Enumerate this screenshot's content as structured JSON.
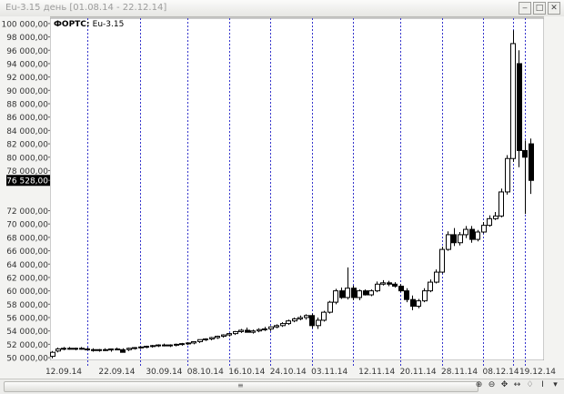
{
  "window": {
    "title": "Eu-3.15  день [01.08.14 - 22.12.14]",
    "buttons": [
      "‒",
      "□",
      "✕"
    ]
  },
  "chart_data": {
    "type": "candlestick",
    "legend_label": "ФОРТС: Eu-3.15",
    "y_ticks": [
      "100 000,00",
      "98 000,00",
      "96 000,00",
      "94 000,00",
      "92 000,00",
      "90 000,00",
      "88 000,00",
      "86 000,00",
      "84 000,00",
      "82 000,00",
      "80 000,00",
      "78 000,00",
      "76 528,00",
      "72 000,00",
      "70 000,00",
      "68 000,00",
      "66 000,00",
      "64 000,00",
      "62 000,00",
      "60 000,00",
      "58 000,00",
      "56 000,00",
      "54 000,00",
      "52 000,00",
      "50 000,00"
    ],
    "y_tick_values": [
      100000,
      98000,
      96000,
      94000,
      92000,
      90000,
      88000,
      86000,
      84000,
      82000,
      80000,
      78000,
      76528,
      72000,
      70000,
      68000,
      66000,
      64000,
      62000,
      60000,
      58000,
      56000,
      54000,
      52000,
      50000
    ],
    "current_price": "76 528,00",
    "ylim": [
      49600,
      100800
    ],
    "x_labels": [
      "12.09.14",
      "22.09.14",
      "30.09.14",
      "08.10.14",
      "16.10.14",
      "24.10.14",
      "03.11.14",
      "12.11.14",
      "20.11.14",
      "28.11.14",
      "08.12.14",
      "19.12.14"
    ],
    "candles": [
      {
        "o": 50200,
        "h": 51000,
        "l": 49900,
        "c": 50800
      },
      {
        "o": 51000,
        "h": 51500,
        "l": 50800,
        "c": 51300
      },
      {
        "o": 51300,
        "h": 51600,
        "l": 51100,
        "c": 51400
      },
      {
        "o": 51400,
        "h": 51600,
        "l": 51200,
        "c": 51300
      },
      {
        "o": 51300,
        "h": 51500,
        "l": 51100,
        "c": 51400
      },
      {
        "o": 51400,
        "h": 51600,
        "l": 51200,
        "c": 51300
      },
      {
        "o": 51300,
        "h": 51500,
        "l": 51100,
        "c": 51200
      },
      {
        "o": 51200,
        "h": 51400,
        "l": 50900,
        "c": 51100
      },
      {
        "o": 51100,
        "h": 51300,
        "l": 50900,
        "c": 51200
      },
      {
        "o": 51200,
        "h": 51400,
        "l": 51000,
        "c": 51150
      },
      {
        "o": 51150,
        "h": 51350,
        "l": 50900,
        "c": 51300
      },
      {
        "o": 51300,
        "h": 51500,
        "l": 51100,
        "c": 51200
      },
      {
        "o": 51200,
        "h": 51400,
        "l": 50900,
        "c": 50800
      },
      {
        "o": 51200,
        "h": 51500,
        "l": 51000,
        "c": 51400
      },
      {
        "o": 51400,
        "h": 51600,
        "l": 51200,
        "c": 51500
      },
      {
        "o": 51500,
        "h": 51700,
        "l": 51300,
        "c": 51600
      },
      {
        "o": 51600,
        "h": 51800,
        "l": 51400,
        "c": 51700
      },
      {
        "o": 51700,
        "h": 51900,
        "l": 51500,
        "c": 51800
      },
      {
        "o": 51800,
        "h": 52000,
        "l": 51600,
        "c": 51900
      },
      {
        "o": 51900,
        "h": 52100,
        "l": 51700,
        "c": 51800
      },
      {
        "o": 51800,
        "h": 52000,
        "l": 51600,
        "c": 51900
      },
      {
        "o": 51900,
        "h": 52100,
        "l": 51700,
        "c": 52000
      },
      {
        "o": 52000,
        "h": 52200,
        "l": 51800,
        "c": 52100
      },
      {
        "o": 52100,
        "h": 52300,
        "l": 51900,
        "c": 52200
      },
      {
        "o": 52200,
        "h": 52400,
        "l": 52000,
        "c": 52400
      },
      {
        "o": 52400,
        "h": 52600,
        "l": 52200,
        "c": 52700
      },
      {
        "o": 52700,
        "h": 52900,
        "l": 52500,
        "c": 52800
      },
      {
        "o": 52800,
        "h": 53100,
        "l": 52600,
        "c": 53000
      },
      {
        "o": 53000,
        "h": 53300,
        "l": 52800,
        "c": 53200
      },
      {
        "o": 53200,
        "h": 53500,
        "l": 53000,
        "c": 53400
      },
      {
        "o": 53400,
        "h": 53700,
        "l": 53200,
        "c": 53600
      },
      {
        "o": 53600,
        "h": 54000,
        "l": 53400,
        "c": 53900
      },
      {
        "o": 53900,
        "h": 54300,
        "l": 53700,
        "c": 54100
      },
      {
        "o": 54100,
        "h": 54500,
        "l": 53800,
        "c": 53800
      },
      {
        "o": 53800,
        "h": 54200,
        "l": 53600,
        "c": 54000
      },
      {
        "o": 54000,
        "h": 54400,
        "l": 53800,
        "c": 54200
      },
      {
        "o": 54200,
        "h": 54600,
        "l": 54000,
        "c": 54300
      },
      {
        "o": 54300,
        "h": 54700,
        "l": 54000,
        "c": 54600
      },
      {
        "o": 54600,
        "h": 55000,
        "l": 54400,
        "c": 54800
      },
      {
        "o": 54800,
        "h": 55300,
        "l": 54600,
        "c": 55100
      },
      {
        "o": 55100,
        "h": 55700,
        "l": 54900,
        "c": 55500
      },
      {
        "o": 55500,
        "h": 56000,
        "l": 55300,
        "c": 55800
      },
      {
        "o": 55800,
        "h": 56300,
        "l": 55600,
        "c": 56000
      },
      {
        "o": 56000,
        "h": 56500,
        "l": 55700,
        "c": 56300
      },
      {
        "o": 56300,
        "h": 56600,
        "l": 54400,
        "c": 54800
      },
      {
        "o": 54800,
        "h": 56000,
        "l": 54300,
        "c": 55600
      },
      {
        "o": 55600,
        "h": 57000,
        "l": 55400,
        "c": 56800
      },
      {
        "o": 56800,
        "h": 58500,
        "l": 56600,
        "c": 58300
      },
      {
        "o": 58300,
        "h": 60300,
        "l": 58000,
        "c": 60000
      },
      {
        "o": 60000,
        "h": 60500,
        "l": 58800,
        "c": 59000
      },
      {
        "o": 59000,
        "h": 63500,
        "l": 58700,
        "c": 60400
      },
      {
        "o": 60400,
        "h": 60800,
        "l": 58600,
        "c": 59000
      },
      {
        "o": 59000,
        "h": 60200,
        "l": 58600,
        "c": 60000
      },
      {
        "o": 60000,
        "h": 60200,
        "l": 59300,
        "c": 59400
      },
      {
        "o": 59400,
        "h": 60200,
        "l": 59200,
        "c": 60000
      },
      {
        "o": 60000,
        "h": 61400,
        "l": 59800,
        "c": 61000
      },
      {
        "o": 61000,
        "h": 61600,
        "l": 60800,
        "c": 61200
      },
      {
        "o": 61200,
        "h": 61500,
        "l": 60700,
        "c": 61000
      },
      {
        "o": 61000,
        "h": 61300,
        "l": 60500,
        "c": 60700
      },
      {
        "o": 60700,
        "h": 61000,
        "l": 59800,
        "c": 60000
      },
      {
        "o": 60000,
        "h": 60400,
        "l": 58300,
        "c": 58700
      },
      {
        "o": 58700,
        "h": 59300,
        "l": 57100,
        "c": 57700
      },
      {
        "o": 57700,
        "h": 58800,
        "l": 57400,
        "c": 58500
      },
      {
        "o": 58500,
        "h": 60400,
        "l": 58300,
        "c": 60000
      },
      {
        "o": 60000,
        "h": 61700,
        "l": 59800,
        "c": 61300
      },
      {
        "o": 61300,
        "h": 63200,
        "l": 61100,
        "c": 62800
      },
      {
        "o": 62800,
        "h": 66600,
        "l": 62600,
        "c": 66200
      },
      {
        "o": 66200,
        "h": 68900,
        "l": 66000,
        "c": 68400
      },
      {
        "o": 68400,
        "h": 69400,
        "l": 66700,
        "c": 67200
      },
      {
        "o": 67200,
        "h": 68800,
        "l": 66800,
        "c": 68400
      },
      {
        "o": 68400,
        "h": 69700,
        "l": 67900,
        "c": 69200
      },
      {
        "o": 69200,
        "h": 69700,
        "l": 67200,
        "c": 67700
      },
      {
        "o": 67700,
        "h": 69100,
        "l": 67400,
        "c": 68800
      },
      {
        "o": 68800,
        "h": 70300,
        "l": 68600,
        "c": 69800
      },
      {
        "o": 69800,
        "h": 71300,
        "l": 69600,
        "c": 70800
      },
      {
        "o": 70800,
        "h": 71800,
        "l": 70600,
        "c": 71200
      },
      {
        "o": 71200,
        "h": 75300,
        "l": 71000,
        "c": 74800
      },
      {
        "o": 74800,
        "h": 80300,
        "l": 74400,
        "c": 79800
      },
      {
        "o": 79800,
        "h": 99000,
        "l": 79300,
        "c": 97000
      },
      {
        "o": 94000,
        "h": 96000,
        "l": 78500,
        "c": 81000
      },
      {
        "o": 81000,
        "h": 82500,
        "l": 71500,
        "c": 80000
      },
      {
        "o": 82000,
        "h": 82800,
        "l": 74500,
        "c": 76528
      }
    ]
  },
  "bottom_tools": [
    "⊕",
    "⊖",
    "✥",
    "↔",
    "♢",
    "I",
    "▾"
  ]
}
